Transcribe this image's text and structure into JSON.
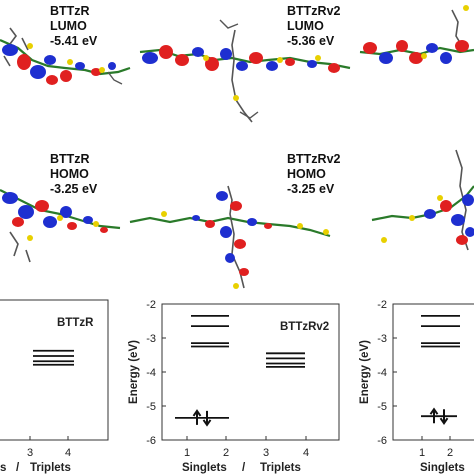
{
  "molecules": [
    {
      "name": "BTTzR",
      "orbital": "LUMO",
      "energy": "-5.41 eV"
    },
    {
      "name": "BTTzRv2",
      "orbital": "LUMO",
      "energy": "-5.36 eV"
    },
    {
      "name": "BTTzR",
      "orbital": "HOMO",
      "energy": "-3.25 eV"
    },
    {
      "name": "BTTzRv2",
      "orbital": "HOMO",
      "energy": "-3.25 eV"
    }
  ],
  "energy_panels": {
    "ylabel": "Energy (eV)",
    "yticks": [
      "-2",
      "-3",
      "-4",
      "-5",
      "-6"
    ],
    "xticks": [
      "1",
      "2",
      "3",
      "4"
    ],
    "xlabel_left": "Singlets",
    "xlabel_sep": "/",
    "xlabel_right": "Triplets",
    "panel1": {
      "name": "BTTzR",
      "xlabel_left_fragment": "s",
      "xticks": [
        "3",
        "4"
      ]
    },
    "panel2": {
      "name": "BTTzRv2"
    },
    "panel3": {
      "xlabel_fragment": "Singlets"
    }
  },
  "chart_data": {
    "type": "energy-level diagram",
    "ylabel": "Energy (eV)",
    "ylim": [
      -6,
      -2
    ],
    "panels": [
      {
        "title": "BTTzR",
        "triplets": [
          -3.45,
          -3.6,
          -3.75,
          -3.85
        ]
      },
      {
        "title": "BTTzRv2",
        "singlets": [
          -2.35,
          -2.65,
          -3.15,
          -3.25
        ],
        "ground": -5.35,
        "triplets": [
          -3.45,
          -3.6,
          -3.75,
          -3.85
        ]
      },
      {
        "singlets": [
          -2.35,
          -2.65,
          -3.15,
          -3.25
        ],
        "ground": -5.3
      }
    ]
  }
}
